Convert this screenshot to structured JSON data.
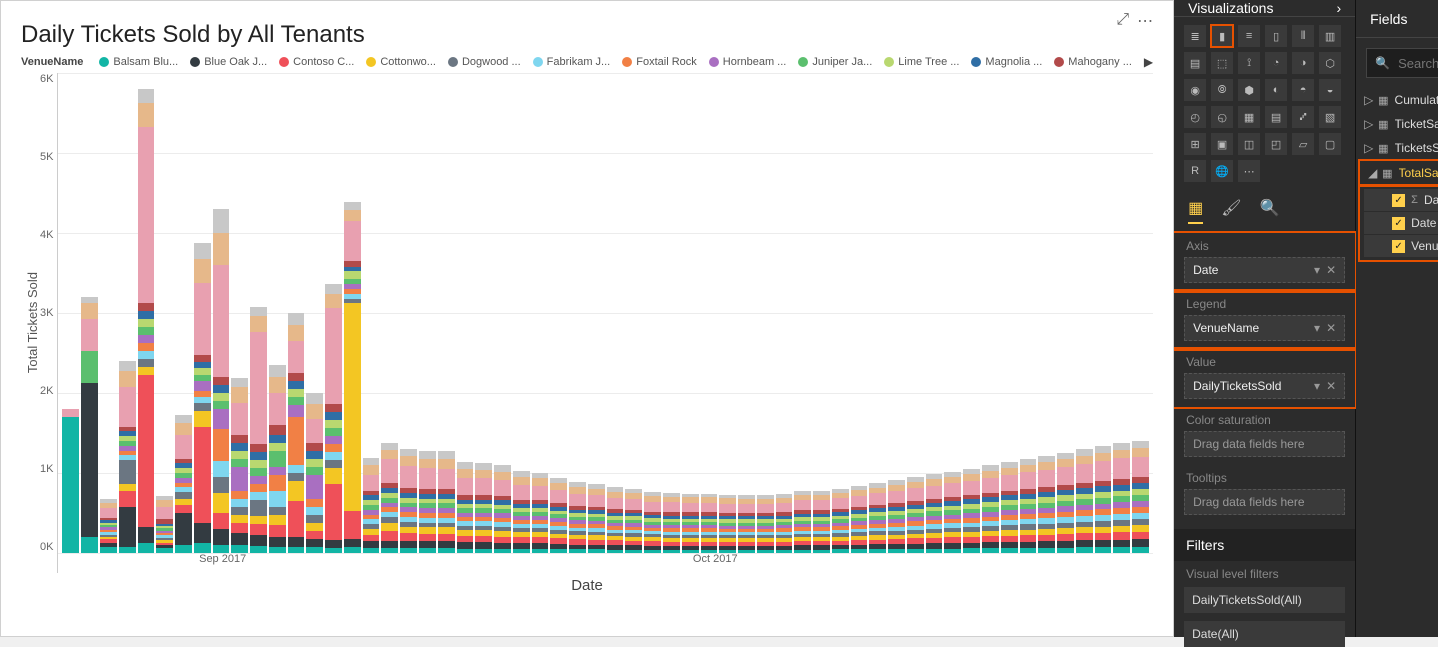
{
  "chart": {
    "title": "Daily Tickets Sold by All Tenants",
    "legend_label": "VenueName",
    "x_axis_label": "Date",
    "y_axis_label": "Total Tickets Sold",
    "ylim": [
      0,
      6000
    ],
    "y_ticks": [
      "6K",
      "5K",
      "4K",
      "3K",
      "2K",
      "1K",
      "0K"
    ],
    "x_ticks": [
      {
        "pos": 15,
        "label": "Sep 2017"
      },
      {
        "pos": 60,
        "label": "Oct 2017"
      }
    ],
    "legend": [
      {
        "name": "Balsam Blu...",
        "color": "#12b5a5"
      },
      {
        "name": "Blue Oak J...",
        "color": "#333b41"
      },
      {
        "name": "Contoso C...",
        "color": "#ef5059"
      },
      {
        "name": "Cottonwo...",
        "color": "#f3c623"
      },
      {
        "name": "Dogwood ...",
        "color": "#6b7682"
      },
      {
        "name": "Fabrikam J...",
        "color": "#7fd6ef"
      },
      {
        "name": "Foxtail Rock",
        "color": "#f18045"
      },
      {
        "name": "Hornbeam ...",
        "color": "#a96fc1"
      },
      {
        "name": "Juniper Ja...",
        "color": "#5bbf6e"
      },
      {
        "name": "Lime Tree ...",
        "color": "#b9d870"
      },
      {
        "name": "Magnolia ...",
        "color": "#2f6ea5"
      },
      {
        "name": "Mahogany ...",
        "color": "#b24a4a"
      }
    ],
    "colors": [
      "#12b5a5",
      "#333b41",
      "#ef5059",
      "#f3c623",
      "#6b7682",
      "#7fd6ef",
      "#f18045",
      "#a96fc1",
      "#5bbf6e",
      "#b9d870",
      "#2f6ea5",
      "#b24a4a",
      "#e8a0b0",
      "#e6b88a",
      "#c8c8c8"
    ],
    "bars": [
      [
        1700,
        0,
        0,
        0,
        0,
        0,
        0,
        0,
        0,
        0,
        0,
        0,
        100,
        0,
        0
      ],
      [
        200,
        1920,
        0,
        0,
        0,
        0,
        0,
        0,
        400,
        0,
        0,
        0,
        400,
        200,
        80
      ],
      [
        80,
        50,
        40,
        30,
        30,
        30,
        30,
        30,
        30,
        30,
        30,
        30,
        120,
        70,
        50
      ],
      [
        80,
        500,
        200,
        80,
        300,
        60,
        60,
        60,
        60,
        60,
        60,
        60,
        500,
        200,
        120
      ],
      [
        120,
        200,
        1900,
        100,
        100,
        100,
        100,
        100,
        100,
        100,
        100,
        100,
        2200,
        300,
        180
      ],
      [
        60,
        40,
        30,
        30,
        30,
        30,
        30,
        30,
        30,
        30,
        30,
        60,
        150,
        80,
        60
      ],
      [
        100,
        400,
        100,
        80,
        80,
        60,
        60,
        60,
        60,
        60,
        60,
        60,
        300,
        150,
        100
      ],
      [
        120,
        250,
        1200,
        200,
        100,
        80,
        80,
        120,
        80,
        80,
        80,
        80,
        900,
        300,
        200
      ],
      [
        100,
        200,
        200,
        250,
        200,
        200,
        400,
        250,
        100,
        100,
        100,
        100,
        1400,
        400,
        300
      ],
      [
        100,
        150,
        120,
        100,
        100,
        100,
        100,
        300,
        100,
        100,
        100,
        100,
        400,
        200,
        120
      ],
      [
        90,
        130,
        140,
        100,
        200,
        100,
        100,
        100,
        100,
        100,
        100,
        100,
        1400,
        200,
        120
      ],
      [
        80,
        120,
        150,
        130,
        100,
        200,
        200,
        100,
        200,
        100,
        100,
        120,
        400,
        200,
        150
      ],
      [
        80,
        120,
        450,
        250,
        100,
        100,
        600,
        150,
        100,
        100,
        100,
        100,
        400,
        200,
        150
      ],
      [
        70,
        110,
        100,
        100,
        100,
        100,
        100,
        300,
        100,
        100,
        100,
        100,
        300,
        180,
        140
      ],
      [
        60,
        100,
        700,
        200,
        100,
        100,
        100,
        100,
        100,
        100,
        100,
        100,
        1200,
        180,
        120
      ],
      [
        70,
        100,
        350,
        2600,
        60,
        60,
        60,
        60,
        60,
        100,
        60,
        70,
        500,
        140,
        100
      ],
      [
        60,
        90,
        80,
        70,
        60,
        60,
        60,
        60,
        60,
        60,
        60,
        60,
        200,
        120,
        90
      ],
      [
        60,
        90,
        120,
        100,
        80,
        60,
        60,
        60,
        60,
        60,
        60,
        60,
        300,
        120,
        90
      ],
      [
        60,
        90,
        100,
        80,
        60,
        60,
        60,
        60,
        60,
        60,
        60,
        60,
        280,
        120,
        90
      ],
      [
        60,
        90,
        90,
        80,
        60,
        60,
        60,
        60,
        60,
        60,
        60,
        60,
        260,
        120,
        90
      ],
      [
        60,
        90,
        90,
        80,
        60,
        60,
        60,
        60,
        60,
        60,
        60,
        60,
        250,
        130,
        100
      ],
      [
        55,
        80,
        80,
        70,
        55,
        55,
        55,
        55,
        55,
        55,
        55,
        55,
        220,
        110,
        90
      ],
      [
        55,
        80,
        80,
        70,
        55,
        55,
        55,
        55,
        55,
        55,
        55,
        55,
        210,
        110,
        85
      ],
      [
        50,
        75,
        80,
        70,
        55,
        55,
        55,
        55,
        55,
        55,
        55,
        55,
        200,
        105,
        80
      ],
      [
        50,
        70,
        75,
        65,
        50,
        50,
        50,
        50,
        50,
        50,
        50,
        50,
        190,
        100,
        75
      ],
      [
        50,
        70,
        75,
        65,
        50,
        50,
        50,
        50,
        50,
        50,
        50,
        50,
        180,
        95,
        70
      ],
      [
        48,
        65,
        70,
        60,
        48,
        48,
        48,
        48,
        48,
        48,
        48,
        48,
        160,
        90,
        68
      ],
      [
        45,
        60,
        65,
        58,
        45,
        45,
        45,
        45,
        45,
        45,
        45,
        45,
        150,
        85,
        65
      ],
      [
        45,
        60,
        62,
        55,
        45,
        45,
        45,
        45,
        45,
        45,
        45,
        45,
        145,
        80,
        60
      ],
      [
        42,
        55,
        60,
        52,
        42,
        42,
        42,
        42,
        42,
        42,
        42,
        42,
        140,
        78,
        58
      ],
      [
        42,
        55,
        58,
        50,
        42,
        42,
        42,
        42,
        42,
        42,
        42,
        42,
        135,
        75,
        55
      ],
      [
        40,
        52,
        55,
        48,
        40,
        40,
        40,
        40,
        40,
        40,
        40,
        40,
        130,
        72,
        52
      ],
      [
        40,
        50,
        52,
        46,
        40,
        40,
        40,
        40,
        40,
        40,
        40,
        40,
        125,
        70,
        50
      ],
      [
        40,
        50,
        52,
        46,
        40,
        40,
        40,
        40,
        40,
        40,
        40,
        40,
        120,
        68,
        48
      ],
      [
        40,
        50,
        52,
        46,
        40,
        40,
        40,
        40,
        40,
        40,
        40,
        40,
        120,
        68,
        48
      ],
      [
        40,
        48,
        50,
        44,
        40,
        40,
        40,
        40,
        40,
        40,
        40,
        40,
        118,
        66,
        46
      ],
      [
        40,
        48,
        50,
        44,
        40,
        40,
        40,
        40,
        40,
        40,
        40,
        40,
        115,
        64,
        44
      ],
      [
        40,
        48,
        50,
        44,
        40,
        40,
        40,
        40,
        40,
        40,
        40,
        40,
        115,
        64,
        44
      ],
      [
        40,
        50,
        52,
        46,
        40,
        40,
        40,
        40,
        40,
        40,
        40,
        40,
        120,
        66,
        46
      ],
      [
        42,
        52,
        54,
        48,
        42,
        42,
        42,
        42,
        42,
        42,
        42,
        42,
        125,
        68,
        48
      ],
      [
        42,
        52,
        54,
        48,
        42,
        42,
        42,
        42,
        42,
        42,
        42,
        42,
        125,
        68,
        48
      ],
      [
        44,
        55,
        56,
        50,
        44,
        44,
        44,
        44,
        44,
        44,
        44,
        44,
        130,
        70,
        50
      ],
      [
        46,
        58,
        58,
        52,
        46,
        46,
        46,
        46,
        46,
        46,
        46,
        46,
        135,
        72,
        52
      ],
      [
        48,
        60,
        60,
        54,
        48,
        48,
        48,
        48,
        48,
        48,
        48,
        48,
        140,
        74,
        54
      ],
      [
        50,
        62,
        62,
        56,
        50,
        50,
        50,
        50,
        50,
        50,
        50,
        50,
        148,
        76,
        56
      ],
      [
        52,
        65,
        65,
        58,
        52,
        52,
        52,
        52,
        52,
        52,
        52,
        52,
        155,
        78,
        58
      ],
      [
        54,
        68,
        68,
        60,
        54,
        54,
        54,
        54,
        54,
        54,
        54,
        54,
        162,
        80,
        60
      ],
      [
        56,
        70,
        70,
        62,
        56,
        56,
        56,
        56,
        56,
        56,
        56,
        56,
        170,
        82,
        62
      ],
      [
        58,
        72,
        72,
        64,
        58,
        58,
        58,
        58,
        58,
        58,
        58,
        58,
        178,
        85,
        65
      ],
      [
        60,
        75,
        75,
        66,
        60,
        60,
        60,
        60,
        60,
        60,
        60,
        60,
        185,
        88,
        68
      ],
      [
        62,
        78,
        78,
        68,
        62,
        62,
        62,
        62,
        62,
        62,
        62,
        62,
        195,
        90,
        70
      ],
      [
        64,
        80,
        80,
        70,
        64,
        64,
        64,
        64,
        64,
        64,
        64,
        64,
        205,
        92,
        72
      ],
      [
        66,
        82,
        82,
        72,
        66,
        66,
        66,
        66,
        66,
        66,
        66,
        66,
        215,
        95,
        75
      ],
      [
        68,
        85,
        85,
        74,
        68,
        68,
        68,
        68,
        68,
        68,
        68,
        68,
        225,
        98,
        78
      ],
      [
        70,
        88,
        88,
        76,
        70,
        70,
        70,
        70,
        70,
        70,
        70,
        70,
        235,
        100,
        80
      ],
      [
        72,
        90,
        90,
        78,
        72,
        72,
        72,
        72,
        72,
        72,
        72,
        72,
        245,
        102,
        82
      ],
      [
        74,
        92,
        92,
        80,
        74,
        74,
        74,
        74,
        74,
        74,
        74,
        74,
        255,
        105,
        85
      ],
      [
        75,
        94,
        94,
        82,
        75,
        75,
        75,
        75,
        75,
        75,
        75,
        75,
        256,
        107,
        87
      ]
    ]
  },
  "viz": {
    "header": "Visualizations",
    "wells": {
      "axis": {
        "label": "Axis",
        "value": "Date"
      },
      "legend": {
        "label": "Legend",
        "value": "VenueName"
      },
      "value": {
        "label": "Value",
        "value": "DailyTicketsSold"
      },
      "sat": {
        "label": "Color saturation",
        "value": "Drag data fields here"
      },
      "tool": {
        "label": "Tooltips",
        "value": "Drag data fields here"
      }
    },
    "filters_header": "Filters",
    "filters_sub": "Visual level filters",
    "filter1": "DailyTicketsSold(All)",
    "filter2": "Date(All)"
  },
  "fields": {
    "header": "Fields",
    "search_placeholder": "Search",
    "tables": [
      {
        "name": "CumulativeDailySal...",
        "expanded": false
      },
      {
        "name": "TicketSalesDistributi...",
        "expanded": false
      },
      {
        "name": "TicketsSoldVersusSa...",
        "expanded": false
      },
      {
        "name": "TotalSalesPerDay",
        "expanded": true,
        "fields": [
          {
            "name": "DailyTicketsSold",
            "type": "sigma"
          },
          {
            "name": "Date",
            "type": "plain"
          },
          {
            "name": "VenueName",
            "type": "plain"
          }
        ]
      }
    ]
  }
}
